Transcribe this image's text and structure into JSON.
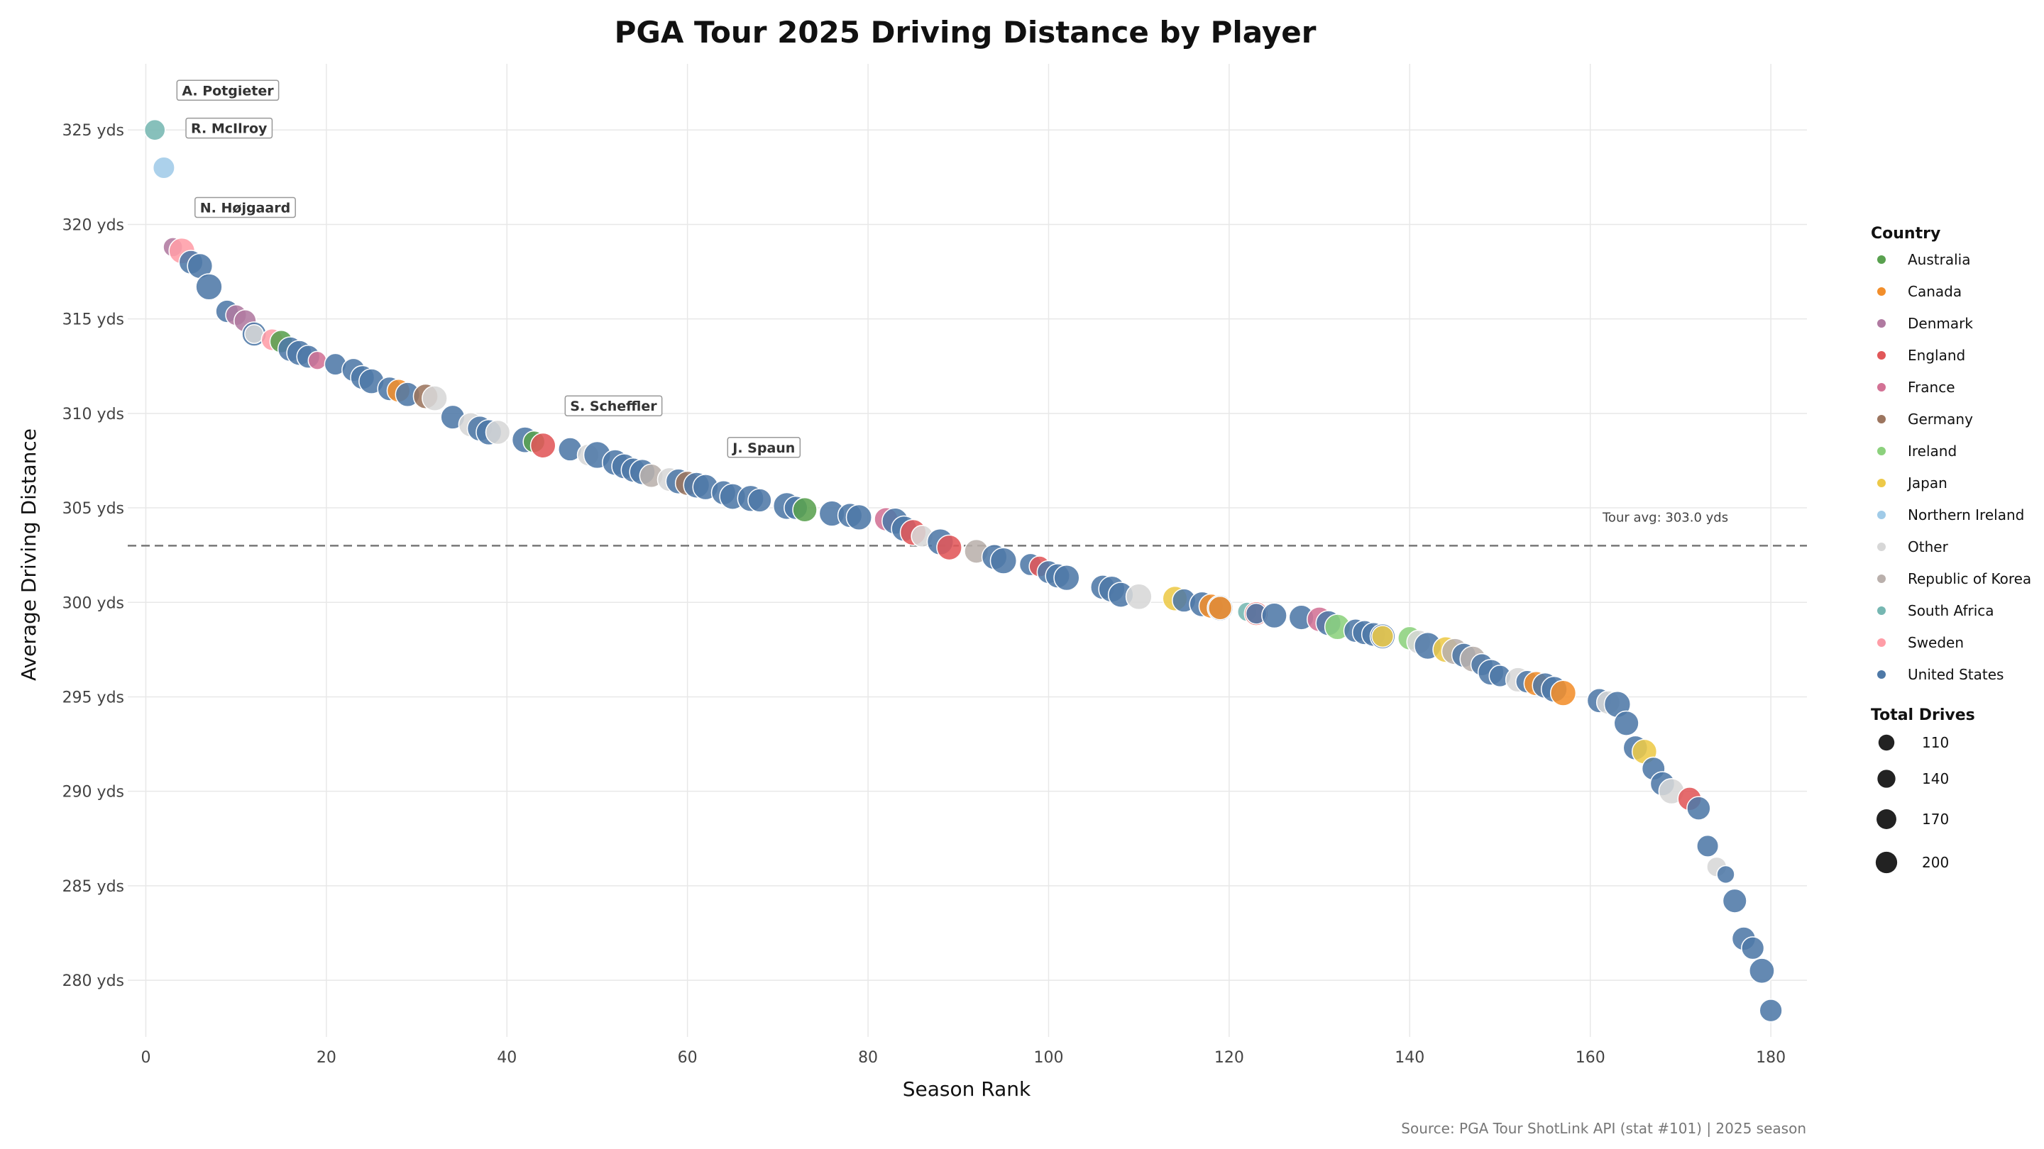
{
  "chart_data": {
    "type": "scatter",
    "title": "PGA Tour 2025  Driving Distance by Player",
    "xlabel": "Season Rank",
    "ylabel": "Average Driving Distance",
    "xlim": [
      -2,
      184
    ],
    "ylim": [
      277,
      328.5
    ],
    "xticks": [
      0,
      20,
      40,
      60,
      80,
      100,
      120,
      140,
      160,
      180
    ],
    "yticks": [
      280,
      285,
      290,
      295,
      300,
      305,
      310,
      315,
      320,
      325
    ],
    "ytick_suffix": " yds",
    "grid": true,
    "reference_line": {
      "y": 303.0,
      "label": "Tour avg: 303.0 yds",
      "style": "dashed"
    },
    "source": "Source: PGA Tour ShotLink API (stat #101)  |  2025 season",
    "colors": {
      "Australia": "#59a14f",
      "Canada": "#f28e2b",
      "Denmark": "#b07aa1",
      "England": "#e15759",
      "France": "#d37295",
      "Germany": "#9c755f",
      "Ireland": "#8cd17d",
      "Japan": "#edc948",
      "Northern Ireland": "#a0cbe8",
      "Other": "#d7d7d7",
      "Republic of Korea": "#bab0ac",
      "South Africa": "#76b7b2",
      "Sweden": "#ff9da7",
      "United States": "#4e79a7"
    },
    "legend": {
      "country_title": "Country",
      "countries": [
        "Australia",
        "Canada",
        "Denmark",
        "England",
        "France",
        "Germany",
        "Ireland",
        "Japan",
        "Northern Ireland",
        "Other",
        "Republic of Korea",
        "South Africa",
        "Sweden",
        "United States"
      ],
      "size_title": "Total Drives",
      "sizes": [
        110,
        140,
        170,
        200
      ],
      "placement": "right"
    },
    "annotations": [
      {
        "label": "A. Potgieter",
        "x": 1,
        "y": 325.0,
        "text_x": 4,
        "text_y": 327.1
      },
      {
        "label": "R. McIlroy",
        "x": 2,
        "y": 323.0,
        "text_x": 5,
        "text_y": 325.1
      },
      {
        "label": "N. Højgaard",
        "x": 3,
        "y": 318.8,
        "text_x": 6,
        "text_y": 320.9
      },
      {
        "label": "S. Scheffler",
        "x": 50,
        "y": 307.8,
        "text_x": 47,
        "text_y": 310.4
      },
      {
        "label": "J. Spaun",
        "x": 68,
        "y": 305.4,
        "text_x": 65,
        "text_y": 308.2
      }
    ],
    "points": [
      {
        "x": 1,
        "y": 325.0,
        "c": "South Africa",
        "d": 110
      },
      {
        "x": 2,
        "y": 323.0,
        "c": "Northern Ireland",
        "d": 120
      },
      {
        "x": 3,
        "y": 318.8,
        "c": "Denmark",
        "d": 95
      },
      {
        "x": 4,
        "y": 318.6,
        "c": "Sweden",
        "d": 170
      },
      {
        "x": 5,
        "y": 318.0,
        "c": "United States",
        "d": 145
      },
      {
        "x": 6,
        "y": 317.8,
        "c": "United States",
        "d": 160
      },
      {
        "x": 7,
        "y": 316.7,
        "c": "United States",
        "d": 175
      },
      {
        "x": 9,
        "y": 315.4,
        "c": "United States",
        "d": 130
      },
      {
        "x": 10,
        "y": 315.2,
        "c": "Denmark",
        "d": 110
      },
      {
        "x": 11,
        "y": 314.9,
        "c": "Denmark",
        "d": 125
      },
      {
        "x": 12,
        "y": 314.2,
        "c": "United States",
        "d": 150
      },
      {
        "x": 12,
        "y": 314.2,
        "c": "Other",
        "d": 90
      },
      {
        "x": 14,
        "y": 313.9,
        "c": "Sweden",
        "d": 120
      },
      {
        "x": 15,
        "y": 313.8,
        "c": "Australia",
        "d": 130
      },
      {
        "x": 16,
        "y": 313.4,
        "c": "United States",
        "d": 155
      },
      {
        "x": 17,
        "y": 313.2,
        "c": "United States",
        "d": 160
      },
      {
        "x": 18,
        "y": 313.0,
        "c": "United States",
        "d": 135
      },
      {
        "x": 19,
        "y": 312.8,
        "c": "France",
        "d": 85
      },
      {
        "x": 21,
        "y": 312.6,
        "c": "United States",
        "d": 120
      },
      {
        "x": 23,
        "y": 312.3,
        "c": "United States",
        "d": 135
      },
      {
        "x": 24,
        "y": 311.9,
        "c": "United States",
        "d": 145
      },
      {
        "x": 25,
        "y": 311.7,
        "c": "United States",
        "d": 160
      },
      {
        "x": 27,
        "y": 311.3,
        "c": "United States",
        "d": 145
      },
      {
        "x": 28,
        "y": 311.2,
        "c": "Canada",
        "d": 135
      },
      {
        "x": 29,
        "y": 311.0,
        "c": "United States",
        "d": 150
      },
      {
        "x": 31,
        "y": 310.9,
        "c": "Germany",
        "d": 155
      },
      {
        "x": 32,
        "y": 310.8,
        "c": "Other",
        "d": 160
      },
      {
        "x": 34,
        "y": 309.8,
        "c": "United States",
        "d": 145
      },
      {
        "x": 36,
        "y": 309.4,
        "c": "Other",
        "d": 150
      },
      {
        "x": 37,
        "y": 309.2,
        "c": "United States",
        "d": 160
      },
      {
        "x": 38,
        "y": 309.0,
        "c": "United States",
        "d": 165
      },
      {
        "x": 39,
        "y": 309.0,
        "c": "Other",
        "d": 150
      },
      {
        "x": 42,
        "y": 308.6,
        "c": "United States",
        "d": 170
      },
      {
        "x": 43,
        "y": 308.5,
        "c": "Australia",
        "d": 120
      },
      {
        "x": 44,
        "y": 308.3,
        "c": "England",
        "d": 160
      },
      {
        "x": 47,
        "y": 308.1,
        "c": "United States",
        "d": 140
      },
      {
        "x": 49,
        "y": 307.8,
        "c": "Other",
        "d": 120
      },
      {
        "x": 50,
        "y": 307.8,
        "c": "United States",
        "d": 185
      },
      {
        "x": 52,
        "y": 307.4,
        "c": "United States",
        "d": 170
      },
      {
        "x": 53,
        "y": 307.2,
        "c": "United States",
        "d": 160
      },
      {
        "x": 54,
        "y": 307.0,
        "c": "United States",
        "d": 150
      },
      {
        "x": 55,
        "y": 306.9,
        "c": "United States",
        "d": 165
      },
      {
        "x": 56,
        "y": 306.7,
        "c": "Republic of Korea",
        "d": 140
      },
      {
        "x": 58,
        "y": 306.5,
        "c": "Other",
        "d": 145
      },
      {
        "x": 59,
        "y": 306.4,
        "c": "United States",
        "d": 160
      },
      {
        "x": 60,
        "y": 306.3,
        "c": "Germany",
        "d": 150
      },
      {
        "x": 61,
        "y": 306.2,
        "c": "United States",
        "d": 170
      },
      {
        "x": 62,
        "y": 306.1,
        "c": "United States",
        "d": 165
      },
      {
        "x": 64,
        "y": 305.8,
        "c": "United States",
        "d": 150
      },
      {
        "x": 65,
        "y": 305.6,
        "c": "United States",
        "d": 170
      },
      {
        "x": 67,
        "y": 305.5,
        "c": "United States",
        "d": 175
      },
      {
        "x": 68,
        "y": 305.4,
        "c": "United States",
        "d": 140
      },
      {
        "x": 71,
        "y": 305.1,
        "c": "United States",
        "d": 185
      },
      {
        "x": 72,
        "y": 305.0,
        "c": "United States",
        "d": 140
      },
      {
        "x": 73,
        "y": 304.9,
        "c": "Australia",
        "d": 150
      },
      {
        "x": 76,
        "y": 304.7,
        "c": "United States",
        "d": 165
      },
      {
        "x": 78,
        "y": 304.6,
        "c": "United States",
        "d": 150
      },
      {
        "x": 79,
        "y": 304.5,
        "c": "United States",
        "d": 165
      },
      {
        "x": 82,
        "y": 304.4,
        "c": "France",
        "d": 140
      },
      {
        "x": 83,
        "y": 304.3,
        "c": "United States",
        "d": 175
      },
      {
        "x": 84,
        "y": 303.9,
        "c": "United States",
        "d": 165
      },
      {
        "x": 85,
        "y": 303.7,
        "c": "England",
        "d": 170
      },
      {
        "x": 86,
        "y": 303.5,
        "c": "Other",
        "d": 120
      },
      {
        "x": 88,
        "y": 303.2,
        "c": "United States",
        "d": 175
      },
      {
        "x": 89,
        "y": 302.9,
        "c": "England",
        "d": 160
      },
      {
        "x": 92,
        "y": 302.7,
        "c": "Republic of Korea",
        "d": 145
      },
      {
        "x": 94,
        "y": 302.4,
        "c": "United States",
        "d": 160
      },
      {
        "x": 95,
        "y": 302.2,
        "c": "United States",
        "d": 175
      },
      {
        "x": 98,
        "y": 302.0,
        "c": "United States",
        "d": 125
      },
      {
        "x": 99,
        "y": 301.9,
        "c": "England",
        "d": 110
      },
      {
        "x": 100,
        "y": 301.6,
        "c": "United States",
        "d": 135
      },
      {
        "x": 101,
        "y": 301.4,
        "c": "United States",
        "d": 150
      },
      {
        "x": 102,
        "y": 301.3,
        "c": "United States",
        "d": 165
      },
      {
        "x": 106,
        "y": 300.8,
        "c": "United States",
        "d": 150
      },
      {
        "x": 107,
        "y": 300.7,
        "c": "United States",
        "d": 175
      },
      {
        "x": 108,
        "y": 300.4,
        "c": "United States",
        "d": 160
      },
      {
        "x": 110,
        "y": 300.3,
        "c": "Other",
        "d": 170
      },
      {
        "x": 114,
        "y": 300.2,
        "c": "Japan",
        "d": 155
      },
      {
        "x": 115,
        "y": 300.1,
        "c": "United States",
        "d": 140
      },
      {
        "x": 117,
        "y": 299.9,
        "c": "United States",
        "d": 160
      },
      {
        "x": 118,
        "y": 299.8,
        "c": "Canada",
        "d": 150
      },
      {
        "x": 119,
        "y": 299.7,
        "c": "United States",
        "d": 170
      },
      {
        "x": 119,
        "y": 299.7,
        "c": "Canada",
        "d": 140
      },
      {
        "x": 122,
        "y": 299.5,
        "c": "South Africa",
        "d": 95
      },
      {
        "x": 123,
        "y": 299.4,
        "c": "England",
        "d": 145
      },
      {
        "x": 123,
        "y": 299.4,
        "c": "United States",
        "d": 110
      },
      {
        "x": 125,
        "y": 299.3,
        "c": "United States",
        "d": 160
      },
      {
        "x": 128,
        "y": 299.2,
        "c": "United States",
        "d": 155
      },
      {
        "x": 130,
        "y": 299.1,
        "c": "France",
        "d": 155
      },
      {
        "x": 131,
        "y": 298.9,
        "c": "United States",
        "d": 160
      },
      {
        "x": 132,
        "y": 298.7,
        "c": "Ireland",
        "d": 165
      },
      {
        "x": 134,
        "y": 298.5,
        "c": "United States",
        "d": 140
      },
      {
        "x": 135,
        "y": 298.4,
        "c": "United States",
        "d": 150
      },
      {
        "x": 136,
        "y": 298.3,
        "c": "United States",
        "d": 145
      },
      {
        "x": 137,
        "y": 298.2,
        "c": "United States",
        "d": 160
      },
      {
        "x": 137,
        "y": 298.2,
        "c": "Japan",
        "d": 120
      },
      {
        "x": 140,
        "y": 298.1,
        "c": "Ireland",
        "d": 140
      },
      {
        "x": 141,
        "y": 297.9,
        "c": "Other",
        "d": 145
      },
      {
        "x": 142,
        "y": 297.7,
        "c": "United States",
        "d": 185
      },
      {
        "x": 144,
        "y": 297.5,
        "c": "Japan",
        "d": 170
      },
      {
        "x": 145,
        "y": 297.4,
        "c": "Republic of Korea",
        "d": 175
      },
      {
        "x": 146,
        "y": 297.2,
        "c": "United States",
        "d": 150
      },
      {
        "x": 147,
        "y": 297.0,
        "c": "Republic of Korea",
        "d": 170
      },
      {
        "x": 148,
        "y": 296.7,
        "c": "United States",
        "d": 125
      },
      {
        "x": 149,
        "y": 296.3,
        "c": "United States",
        "d": 170
      },
      {
        "x": 150,
        "y": 296.1,
        "c": "United States",
        "d": 120
      },
      {
        "x": 152,
        "y": 295.9,
        "c": "Other",
        "d": 155
      },
      {
        "x": 153,
        "y": 295.8,
        "c": "United States",
        "d": 130
      },
      {
        "x": 154,
        "y": 295.7,
        "c": "Canada",
        "d": 150
      },
      {
        "x": 155,
        "y": 295.6,
        "c": "United States",
        "d": 165
      },
      {
        "x": 156,
        "y": 295.4,
        "c": "United States",
        "d": 170
      },
      {
        "x": 157,
        "y": 295.2,
        "c": "Canada",
        "d": 165
      },
      {
        "x": 161,
        "y": 294.8,
        "c": "United States",
        "d": 150
      },
      {
        "x": 162,
        "y": 294.7,
        "c": "Other",
        "d": 140
      },
      {
        "x": 163,
        "y": 294.6,
        "c": "United States",
        "d": 175
      },
      {
        "x": 164,
        "y": 293.6,
        "c": "United States",
        "d": 155
      },
      {
        "x": 165,
        "y": 292.3,
        "c": "United States",
        "d": 150
      },
      {
        "x": 166,
        "y": 292.1,
        "c": "Japan",
        "d": 155
      },
      {
        "x": 167,
        "y": 291.2,
        "c": "United States",
        "d": 135
      },
      {
        "x": 168,
        "y": 290.4,
        "c": "United States",
        "d": 150
      },
      {
        "x": 169,
        "y": 290.0,
        "c": "Other",
        "d": 165
      },
      {
        "x": 171,
        "y": 289.6,
        "c": "England",
        "d": 140
      },
      {
        "x": 172,
        "y": 289.1,
        "c": "United States",
        "d": 140
      },
      {
        "x": 173,
        "y": 287.1,
        "c": "United States",
        "d": 120
      },
      {
        "x": 174,
        "y": 286.0,
        "c": "Other",
        "d": 100
      },
      {
        "x": 175,
        "y": 285.6,
        "c": "United States",
        "d": 80
      },
      {
        "x": 176,
        "y": 284.2,
        "c": "United States",
        "d": 145
      },
      {
        "x": 177,
        "y": 282.2,
        "c": "United States",
        "d": 140
      },
      {
        "x": 178,
        "y": 281.7,
        "c": "United States",
        "d": 130
      },
      {
        "x": 179,
        "y": 280.5,
        "c": "United States",
        "d": 160
      },
      {
        "x": 180,
        "y": 278.4,
        "c": "United States",
        "d": 130
      }
    ]
  }
}
